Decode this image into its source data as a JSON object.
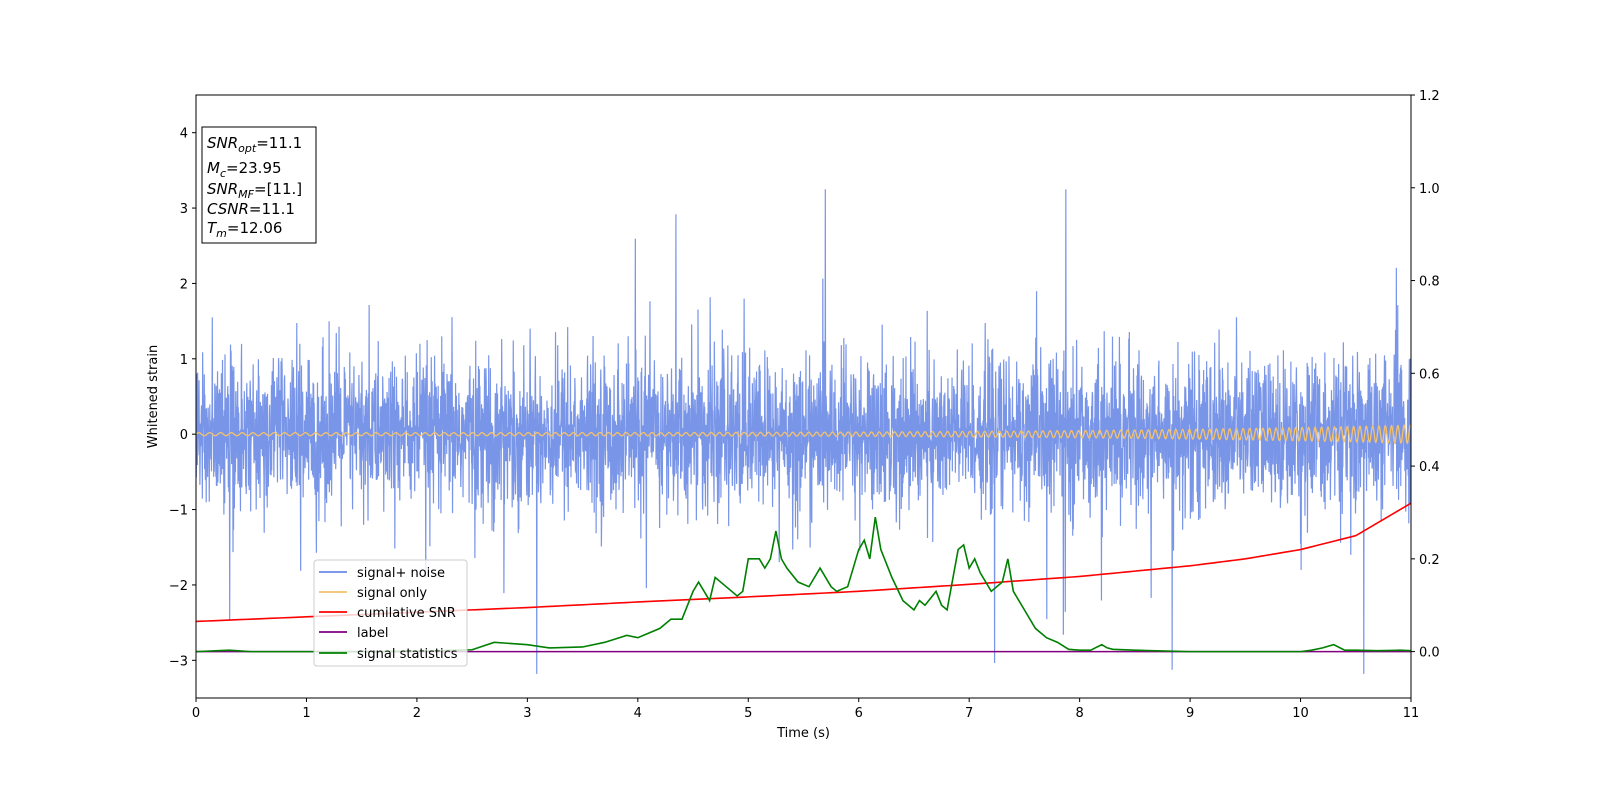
{
  "chart_data": {
    "type": "line",
    "xlabel": "Time (s)",
    "ylabel": "Whitened strain",
    "xlim": [
      0,
      11
    ],
    "ylim": [
      -3.5,
      4.5
    ],
    "y2lim": [
      -0.1,
      1.2
    ],
    "x_ticks": [
      "0",
      "1",
      "2",
      "3",
      "4",
      "5",
      "6",
      "7",
      "8",
      "9",
      "10",
      "11"
    ],
    "y_ticks": [
      "−3",
      "−2",
      "−1",
      "0",
      "1",
      "2",
      "3",
      "4"
    ],
    "y2_ticks": [
      "0.0",
      "0.2",
      "0.4",
      "0.6",
      "0.8",
      "1.0",
      "1.2"
    ],
    "legend_position": "lower-left",
    "annotations": [
      {
        "base": "SNR",
        "sub": "opt",
        "rest": "=11.1"
      },
      {
        "base": "M",
        "sub": "c",
        "rest": "=23.95"
      },
      {
        "base": "SNR",
        "sub": "MF",
        "rest": "=[11.]"
      },
      {
        "base": "CSNR",
        "sub": "",
        "rest": "=11.1"
      },
      {
        "base": "T",
        "sub": "m",
        "rest": "=12.06"
      }
    ],
    "series": [
      {
        "name": "signal+ noise",
        "axis": "left",
        "color": "#6a8ae6",
        "kind": "noise",
        "std": 0.9,
        "x_range": [
          0,
          11
        ],
        "max": 3.25,
        "min": -3.18
      },
      {
        "name": "signal only",
        "axis": "left",
        "color": "#f5c26b",
        "kind": "chirp",
        "amplitude_start": 0.02,
        "amplitude_end": 0.12,
        "x_range": [
          0,
          11
        ]
      },
      {
        "name": "cumilative SNR",
        "axis": "right",
        "color": "#ff0000",
        "x": [
          0,
          1,
          2,
          3,
          4,
          5,
          6,
          7,
          8,
          9,
          9.5,
          10,
          10.5,
          11
        ],
        "y": [
          0.065,
          0.075,
          0.085,
          0.095,
          0.107,
          0.118,
          0.13,
          0.145,
          0.162,
          0.185,
          0.2,
          0.22,
          0.25,
          0.32
        ]
      },
      {
        "name": "label",
        "axis": "right",
        "color": "#800080",
        "x": [
          0,
          11
        ],
        "y": [
          0.0,
          0.0
        ]
      },
      {
        "name": "signal statistics",
        "axis": "right",
        "color": "#008000",
        "x": [
          0,
          0.3,
          0.5,
          1,
          1.5,
          2,
          2.5,
          2.7,
          3,
          3.2,
          3.5,
          3.7,
          3.9,
          4.0,
          4.2,
          4.3,
          4.4,
          4.5,
          4.55,
          4.6,
          4.65,
          4.7,
          4.8,
          4.9,
          4.95,
          5.0,
          5.1,
          5.15,
          5.2,
          5.25,
          5.3,
          5.35,
          5.45,
          5.55,
          5.65,
          5.75,
          5.8,
          5.9,
          6.0,
          6.05,
          6.1,
          6.15,
          6.2,
          6.3,
          6.4,
          6.5,
          6.55,
          6.6,
          6.7,
          6.75,
          6.8,
          6.9,
          6.95,
          7.0,
          7.05,
          7.1,
          7.2,
          7.3,
          7.35,
          7.4,
          7.5,
          7.6,
          7.7,
          7.8,
          7.9,
          8.0,
          8.1,
          8.2,
          8.25,
          8.3,
          8.5,
          9.0,
          9.5,
          10.0,
          10.1,
          10.2,
          10.3,
          10.4,
          10.5,
          10.7,
          10.9,
          11.0
        ],
        "y": [
          0.0,
          0.003,
          0.0,
          0.0,
          0.0,
          0.001,
          0.004,
          0.02,
          0.015,
          0.008,
          0.01,
          0.02,
          0.035,
          0.03,
          0.05,
          0.07,
          0.07,
          0.13,
          0.15,
          0.13,
          0.11,
          0.16,
          0.14,
          0.12,
          0.13,
          0.2,
          0.2,
          0.18,
          0.2,
          0.26,
          0.2,
          0.18,
          0.15,
          0.14,
          0.18,
          0.14,
          0.13,
          0.14,
          0.22,
          0.24,
          0.2,
          0.29,
          0.22,
          0.16,
          0.11,
          0.09,
          0.11,
          0.1,
          0.13,
          0.1,
          0.09,
          0.22,
          0.23,
          0.18,
          0.2,
          0.17,
          0.13,
          0.15,
          0.2,
          0.13,
          0.09,
          0.05,
          0.03,
          0.02,
          0.005,
          0.003,
          0.003,
          0.015,
          0.008,
          0.005,
          0.003,
          0.0,
          0.0,
          0.0,
          0.003,
          0.008,
          0.015,
          0.003,
          0.003,
          0.002,
          0.003,
          0.002
        ]
      }
    ]
  }
}
